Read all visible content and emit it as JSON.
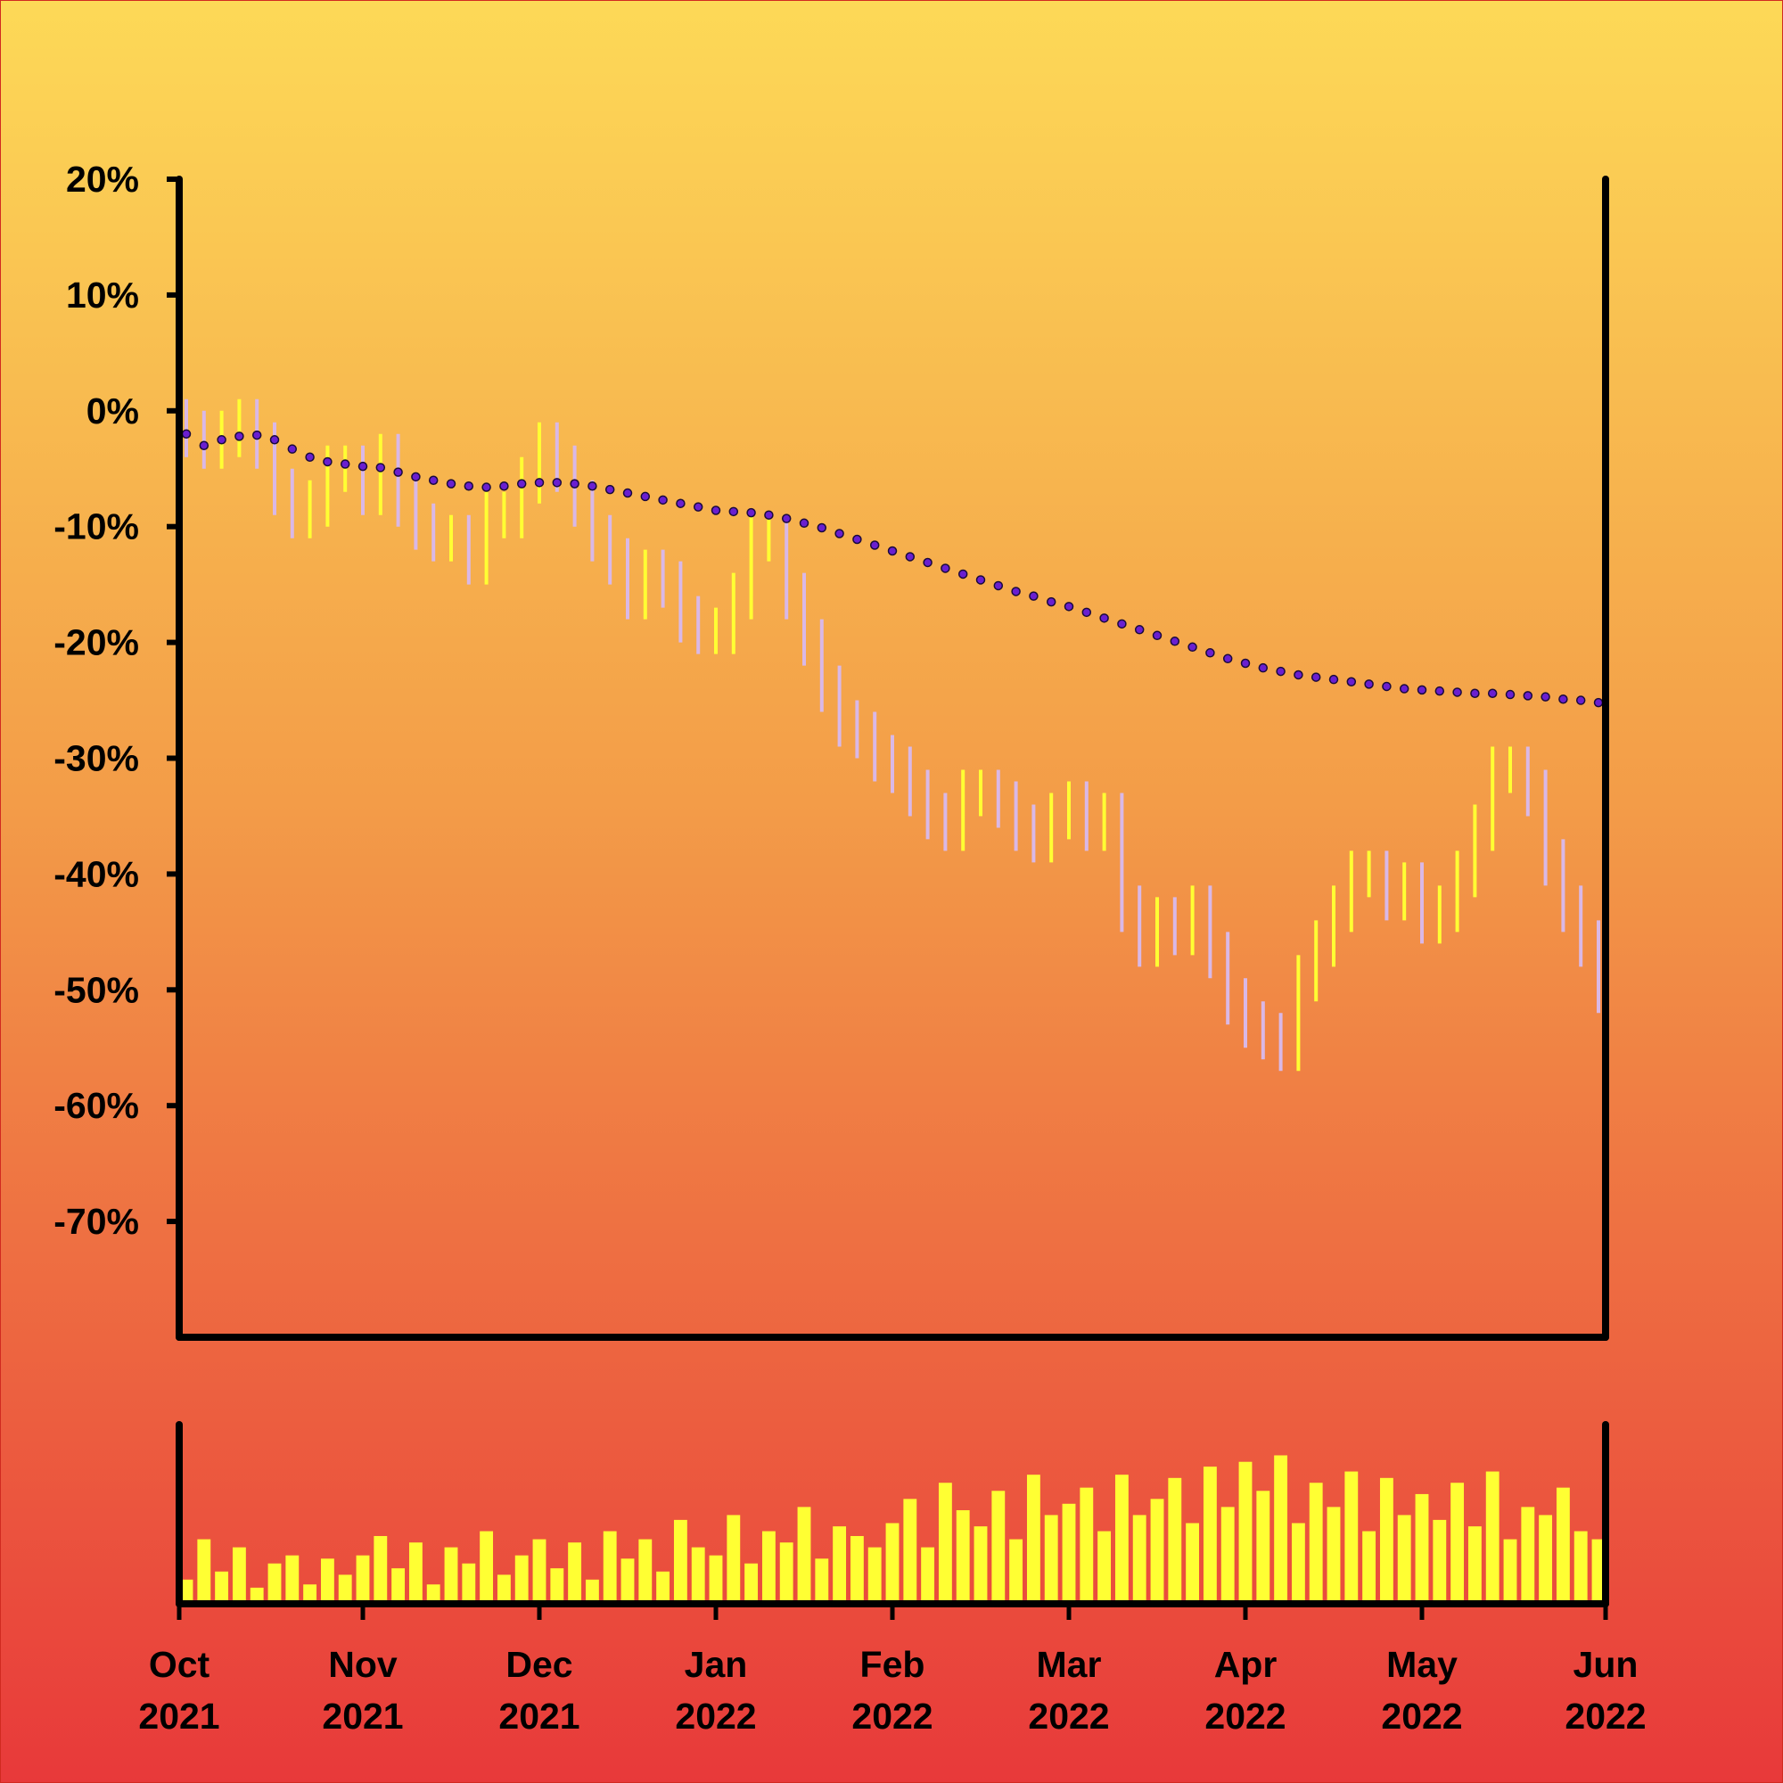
{
  "chart_data": {
    "type": "ohlc",
    "categories": [
      "Oct 2021",
      null,
      null,
      null,
      null,
      null,
      null,
      null,
      null,
      null,
      "Nov 2021",
      null,
      null,
      null,
      null,
      null,
      null,
      null,
      null,
      null,
      "Dec 2021",
      null,
      null,
      null,
      null,
      null,
      null,
      null,
      null,
      null,
      "Jan 2022",
      null,
      null,
      null,
      null,
      null,
      null,
      null,
      null,
      null,
      "Feb 2022",
      null,
      null,
      null,
      null,
      null,
      null,
      null,
      null,
      null,
      "Mar 2022",
      null,
      null,
      null,
      null,
      null,
      null,
      null,
      null,
      null,
      "Apr 2022",
      null,
      null,
      null,
      null,
      null,
      null,
      null,
      null,
      null,
      "May 2022",
      null,
      null,
      null,
      null,
      null,
      null,
      null,
      null,
      null,
      "Jun 2022"
    ],
    "open": [
      -1,
      -2,
      -3,
      -2,
      -1,
      -3,
      -7,
      -9,
      -8,
      -5,
      -5,
      -7,
      -4,
      -8,
      -10,
      -11,
      -11,
      -13,
      -9,
      -9,
      -6,
      -3,
      -5,
      -8,
      -11,
      -13,
      -16,
      -14,
      -15,
      -18,
      -19,
      -19,
      -16,
      -11,
      -11,
      -16,
      -20,
      -24,
      -27,
      -28,
      -30,
      -31,
      -33,
      -35,
      -36,
      -33,
      -33,
      -34,
      -36,
      -37,
      -35,
      -34,
      -36,
      -35,
      -43,
      -46,
      -44,
      -45,
      -43,
      -47,
      -51,
      -53,
      -54,
      -55,
      -49,
      -46,
      -43,
      -40,
      -40,
      -42,
      -41,
      -44,
      -43,
      -40,
      -36,
      -31,
      -31,
      -33,
      -39,
      -43,
      -46
    ],
    "high": [
      1,
      0,
      0,
      1,
      1,
      -1,
      -5,
      -6,
      -3,
      -3,
      -3,
      -2,
      -2,
      -6,
      -8,
      -9,
      -9,
      -7,
      -7,
      -4,
      -1,
      -1,
      -3,
      -6,
      -9,
      -11,
      -12,
      -12,
      -13,
      -16,
      -17,
      -14,
      -9,
      -9,
      -9,
      -14,
      -18,
      -22,
      -25,
      -26,
      -28,
      -29,
      -31,
      -33,
      -31,
      -31,
      -31,
      -32,
      -34,
      -33,
      -32,
      -32,
      -33,
      -33,
      -41,
      -42,
      -42,
      -41,
      -41,
      -45,
      -49,
      -51,
      -52,
      -47,
      -44,
      -41,
      -38,
      -38,
      -38,
      -39,
      -39,
      -41,
      -38,
      -34,
      -29,
      -29,
      -29,
      -31,
      -37,
      -41,
      -44
    ],
    "low": [
      -4,
      -5,
      -5,
      -4,
      -5,
      -9,
      -11,
      -11,
      -10,
      -7,
      -9,
      -9,
      -10,
      -12,
      -13,
      -13,
      -15,
      -15,
      -11,
      -11,
      -8,
      -7,
      -10,
      -13,
      -15,
      -18,
      -18,
      -17,
      -20,
      -21,
      -21,
      -21,
      -18,
      -13,
      -18,
      -22,
      -26,
      -29,
      -30,
      -32,
      -33,
      -35,
      -37,
      -38,
      -38,
      -35,
      -36,
      -38,
      -39,
      -39,
      -37,
      -38,
      -38,
      -45,
      -48,
      -48,
      -47,
      -47,
      -49,
      -53,
      -55,
      -56,
      -57,
      -57,
      -51,
      -48,
      -45,
      -42,
      -44,
      -44,
      -46,
      -46,
      -45,
      -42,
      -38,
      -33,
      -35,
      -41,
      -45,
      -48,
      -52
    ],
    "close": [
      -2,
      -3,
      -2,
      -1,
      -3,
      -7,
      -9,
      -8,
      -5,
      -5,
      -7,
      -4,
      -8,
      -10,
      -11,
      -11,
      -13,
      -9,
      -9,
      -6,
      -3,
      -5,
      -8,
      -11,
      -13,
      -16,
      -14,
      -15,
      -18,
      -19,
      -19,
      -16,
      -11,
      -11,
      -16,
      -20,
      -24,
      -27,
      -28,
      -30,
      -31,
      -33,
      -35,
      -36,
      -33,
      -33,
      -34,
      -36,
      -37,
      -35,
      -34,
      -36,
      -35,
      -43,
      -46,
      -44,
      -45,
      -43,
      -47,
      -51,
      -53,
      -54,
      -55,
      -49,
      -46,
      -43,
      -40,
      -40,
      -42,
      -41,
      -44,
      -43,
      -40,
      -36,
      -31,
      -31,
      -33,
      -39,
      -43,
      -46,
      -50
    ],
    "up_color": "#ffff33",
    "down_color": "#d9b8e6",
    "ma": [
      -2,
      -3,
      -2.5,
      -2.2,
      -2.1,
      -2.5,
      -3.3,
      -4,
      -4.4,
      -4.6,
      -4.8,
      -4.9,
      -5.3,
      -5.7,
      -6,
      -6.3,
      -6.5,
      -6.6,
      -6.5,
      -6.3,
      -6.2,
      -6.2,
      -6.3,
      -6.5,
      -6.8,
      -7.1,
      -7.4,
      -7.7,
      -8,
      -8.3,
      -8.6,
      -8.7,
      -8.8,
      -9,
      -9.3,
      -9.7,
      -10.1,
      -10.6,
      -11.1,
      -11.6,
      -12.1,
      -12.6,
      -13.1,
      -13.6,
      -14.1,
      -14.6,
      -15.1,
      -15.6,
      -16,
      -16.5,
      -16.9,
      -17.4,
      -17.9,
      -18.4,
      -18.9,
      -19.4,
      -19.9,
      -20.4,
      -20.9,
      -21.4,
      -21.8,
      -22.2,
      -22.5,
      -22.8,
      -23,
      -23.2,
      -23.4,
      -23.6,
      -23.8,
      -24,
      -24.1,
      -24.2,
      -24.3,
      -24.4,
      -24.4,
      -24.5,
      -24.6,
      -24.7,
      -24.9,
      -25,
      -25.2
    ],
    "ma_color": "#6a1fd0",
    "ylim": [
      -80,
      20
    ],
    "yticks": [
      {
        "value": 20,
        "label": "20%"
      },
      {
        "value": 10,
        "label": "10%"
      },
      {
        "value": 0,
        "label": "0%"
      },
      {
        "value": -10,
        "label": "-10%"
      },
      {
        "value": -20,
        "label": "-20%"
      },
      {
        "value": -30,
        "label": "-30%"
      },
      {
        "value": -40,
        "label": "-40%"
      },
      {
        "value": -50,
        "label": "-50%"
      },
      {
        "value": -60,
        "label": "-60%"
      },
      {
        "value": -70,
        "label": "-70%"
      }
    ],
    "volume": {
      "type": "bar",
      "color": "#ffff33",
      "ylim": [
        0,
        100
      ],
      "values": [
        15,
        40,
        20,
        35,
        10,
        25,
        30,
        12,
        28,
        18,
        30,
        42,
        22,
        38,
        12,
        35,
        25,
        45,
        18,
        30,
        40,
        22,
        38,
        15,
        45,
        28,
        40,
        20,
        52,
        35,
        30,
        55,
        25,
        45,
        38,
        60,
        28,
        48,
        42,
        35,
        50,
        65,
        35,
        75,
        58,
        48,
        70,
        40,
        80,
        55,
        62,
        72,
        45,
        80,
        55,
        65,
        78,
        50,
        85,
        60,
        88,
        70,
        92,
        50,
        75,
        60,
        82,
        45,
        78,
        55,
        68,
        52,
        75,
        48,
        82,
        40,
        60,
        55,
        72,
        45,
        40
      ]
    }
  }
}
